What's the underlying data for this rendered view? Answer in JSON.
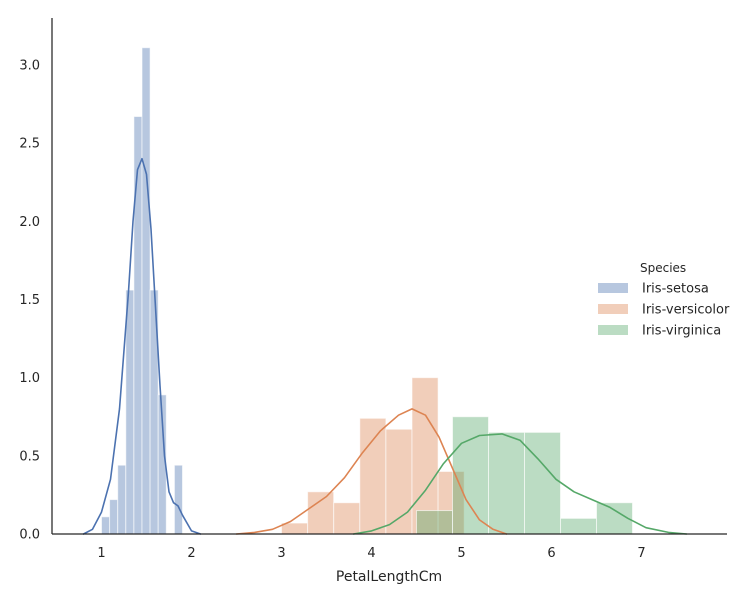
{
  "chart_data": {
    "type": "bar",
    "subtype": "histogram-with-kde",
    "xlabel": "PetalLengthCm",
    "ylabel": "",
    "xlim": [
      0.45,
      7.95
    ],
    "ylim": [
      0,
      3.3
    ],
    "xticks": [
      1,
      2,
      3,
      4,
      5,
      6,
      7
    ],
    "yticks": [
      0.0,
      0.5,
      1.0,
      1.5,
      2.0,
      2.5,
      3.0
    ],
    "xtick_labels": [
      "1",
      "2",
      "3",
      "4",
      "5",
      "6",
      "7"
    ],
    "ytick_labels": [
      "0.0",
      "0.5",
      "1.0",
      "1.5",
      "2.0",
      "2.5",
      "3.0"
    ],
    "grid": false,
    "legend": {
      "title": "Species",
      "position": "right"
    },
    "series": [
      {
        "name": "Iris-setosa",
        "color": "#4c72b0",
        "bins": [
          {
            "x0": 1.0,
            "x1": 1.09,
            "y": 0.11
          },
          {
            "x0": 1.09,
            "x1": 1.18,
            "y": 0.22
          },
          {
            "x0": 1.18,
            "x1": 1.27,
            "y": 0.44
          },
          {
            "x0": 1.27,
            "x1": 1.36,
            "y": 1.56
          },
          {
            "x0": 1.36,
            "x1": 1.45,
            "y": 2.67
          },
          {
            "x0": 1.45,
            "x1": 1.54,
            "y": 3.11
          },
          {
            "x0": 1.54,
            "x1": 1.63,
            "y": 1.56
          },
          {
            "x0": 1.63,
            "x1": 1.72,
            "y": 0.89
          },
          {
            "x0": 1.72,
            "x1": 1.81,
            "y": 0.0
          },
          {
            "x0": 1.81,
            "x1": 1.9,
            "y": 0.44
          }
        ],
        "kde": [
          [
            0.8,
            0.0
          ],
          [
            0.9,
            0.03
          ],
          [
            1.0,
            0.14
          ],
          [
            1.1,
            0.35
          ],
          [
            1.2,
            0.8
          ],
          [
            1.3,
            1.55
          ],
          [
            1.35,
            2.0
          ],
          [
            1.4,
            2.33
          ],
          [
            1.45,
            2.4
          ],
          [
            1.5,
            2.3
          ],
          [
            1.55,
            1.95
          ],
          [
            1.6,
            1.45
          ],
          [
            1.65,
            0.95
          ],
          [
            1.7,
            0.5
          ],
          [
            1.75,
            0.27
          ],
          [
            1.8,
            0.2
          ],
          [
            1.85,
            0.18
          ],
          [
            1.9,
            0.12
          ],
          [
            2.0,
            0.02
          ],
          [
            2.1,
            0.0
          ]
        ]
      },
      {
        "name": "Iris-versicolor",
        "color": "#dd8452",
        "bins": [
          {
            "x0": 3.0,
            "x1": 3.29,
            "y": 0.07
          },
          {
            "x0": 3.29,
            "x1": 3.58,
            "y": 0.27
          },
          {
            "x0": 3.58,
            "x1": 3.87,
            "y": 0.2
          },
          {
            "x0": 3.87,
            "x1": 4.16,
            "y": 0.74
          },
          {
            "x0": 4.16,
            "x1": 4.45,
            "y": 0.67
          },
          {
            "x0": 4.45,
            "x1": 4.74,
            "y": 1.0
          },
          {
            "x0": 4.74,
            "x1": 5.03,
            "y": 0.4
          }
        ],
        "kde": [
          [
            2.5,
            0.0
          ],
          [
            2.7,
            0.01
          ],
          [
            2.9,
            0.03
          ],
          [
            3.1,
            0.08
          ],
          [
            3.3,
            0.16
          ],
          [
            3.5,
            0.24
          ],
          [
            3.7,
            0.36
          ],
          [
            3.9,
            0.52
          ],
          [
            4.1,
            0.66
          ],
          [
            4.3,
            0.76
          ],
          [
            4.45,
            0.8
          ],
          [
            4.6,
            0.76
          ],
          [
            4.75,
            0.62
          ],
          [
            4.9,
            0.42
          ],
          [
            5.05,
            0.22
          ],
          [
            5.2,
            0.09
          ],
          [
            5.35,
            0.03
          ],
          [
            5.5,
            0.0
          ]
        ]
      },
      {
        "name": "Iris-virginica",
        "color": "#55a868",
        "bins": [
          {
            "x0": 4.5,
            "x1": 4.9,
            "y": 0.15
          },
          {
            "x0": 4.9,
            "x1": 5.3,
            "y": 0.75
          },
          {
            "x0": 5.3,
            "x1": 5.7,
            "y": 0.65
          },
          {
            "x0": 5.7,
            "x1": 6.1,
            "y": 0.65
          },
          {
            "x0": 6.1,
            "x1": 6.5,
            "y": 0.1
          },
          {
            "x0": 6.5,
            "x1": 6.9,
            "y": 0.2
          }
        ],
        "kde": [
          [
            3.8,
            0.0
          ],
          [
            4.0,
            0.02
          ],
          [
            4.2,
            0.06
          ],
          [
            4.4,
            0.14
          ],
          [
            4.6,
            0.28
          ],
          [
            4.8,
            0.45
          ],
          [
            5.0,
            0.58
          ],
          [
            5.2,
            0.63
          ],
          [
            5.45,
            0.64
          ],
          [
            5.65,
            0.6
          ],
          [
            5.85,
            0.48
          ],
          [
            6.05,
            0.35
          ],
          [
            6.25,
            0.27
          ],
          [
            6.45,
            0.22
          ],
          [
            6.65,
            0.17
          ],
          [
            6.85,
            0.1
          ],
          [
            7.05,
            0.04
          ],
          [
            7.3,
            0.01
          ],
          [
            7.5,
            0.0
          ]
        ]
      }
    ]
  }
}
